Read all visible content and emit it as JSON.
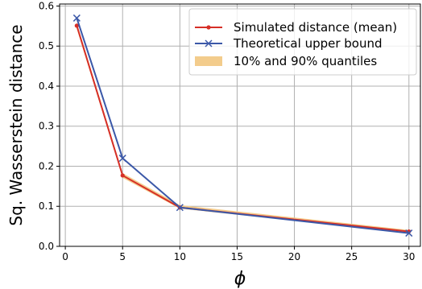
{
  "chart_data": {
    "type": "line",
    "xlabel": "ϕ",
    "ylabel": "Sq. Wasserstein distance",
    "x": [
      1,
      5,
      10,
      30
    ],
    "xlim": [
      -0.5,
      31
    ],
    "ylim": [
      0,
      0.605
    ],
    "xticks": [
      "0",
      "5",
      "10",
      "15",
      "20",
      "25",
      "30"
    ],
    "yticks": [
      "0.0",
      "0.1",
      "0.2",
      "0.3",
      "0.4",
      "0.5",
      "0.6"
    ],
    "grid": true,
    "legend_position": "top-right",
    "series": [
      {
        "name": "Simulated distance (mean)",
        "marker": "dot",
        "color": "#d62f27",
        "values": [
          0.551,
          0.177,
          0.097,
          0.037
        ]
      },
      {
        "name": "Theoretical upper bound",
        "marker": "x",
        "color": "#3b58a8",
        "values": [
          0.57,
          0.22,
          0.097,
          0.033
        ]
      }
    ],
    "band": {
      "name": "10% and 90% quantiles",
      "color": "#f3cc8c",
      "lower": [
        0.543,
        0.171,
        0.094,
        0.034
      ],
      "upper": [
        0.558,
        0.183,
        0.103,
        0.041
      ]
    }
  }
}
